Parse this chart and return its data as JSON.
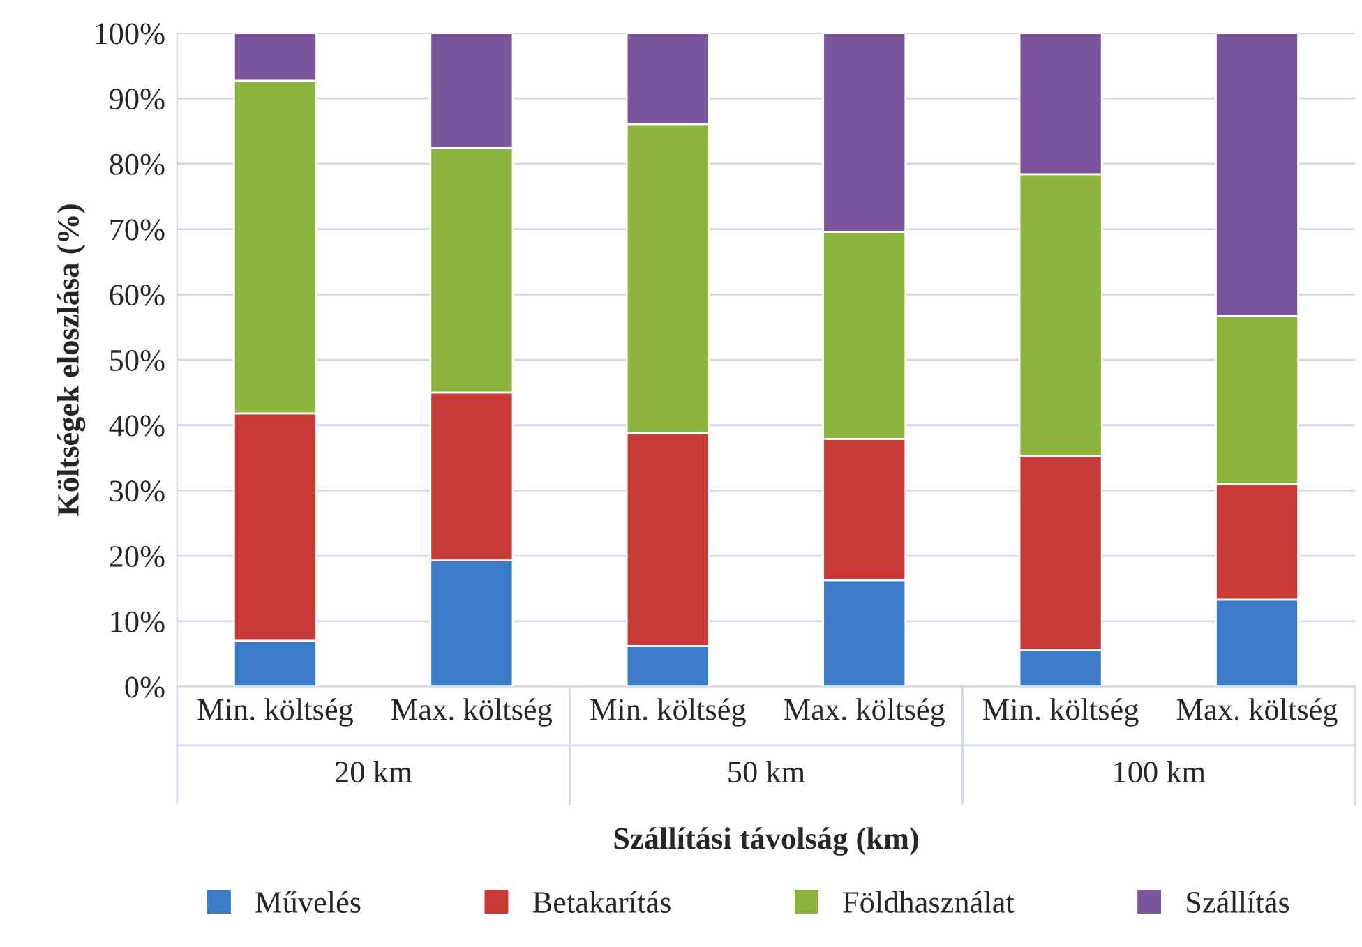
{
  "chart_data": {
    "type": "bar",
    "stacked": true,
    "xlabel": "Szállítási távolság (km)",
    "ylabel": "Költségek eloszlása (%)",
    "categories": [
      "Min. költség",
      "Max. költség",
      "Min. költség",
      "Max. költség",
      "Min. költség",
      "Max. költség"
    ],
    "annotations": [
      "20 km",
      "50 km",
      "100 km"
    ],
    "series": [
      {
        "name": "Művelés",
        "color": "#3b7bc8",
        "values": [
          7.0,
          19.3,
          6.2,
          16.3,
          5.6,
          13.3
        ]
      },
      {
        "name": "Betakarítás",
        "color": "#c83a36",
        "values": [
          34.8,
          25.7,
          32.6,
          21.6,
          29.7,
          17.7
        ]
      },
      {
        "name": "Földhasználat",
        "color": "#8db43e",
        "values": [
          50.9,
          37.4,
          47.3,
          31.7,
          43.1,
          25.7
        ]
      },
      {
        "name": "Szállítás",
        "color": "#7a559c",
        "values": [
          7.3,
          17.6,
          13.9,
          30.4,
          21.6,
          43.3
        ]
      }
    ],
    "ylim": [
      0,
      100
    ],
    "yticks": [
      {
        "value": 0,
        "label": "0%"
      },
      {
        "value": 10,
        "label": "10%"
      },
      {
        "value": 20,
        "label": "20%"
      },
      {
        "value": 30,
        "label": "30%"
      },
      {
        "value": 40,
        "label": "40%"
      },
      {
        "value": 50,
        "label": "50%"
      },
      {
        "value": 60,
        "label": "60%"
      },
      {
        "value": 70,
        "label": "70%"
      },
      {
        "value": 80,
        "label": "80%"
      },
      {
        "value": 90,
        "label": "90%"
      },
      {
        "value": 100,
        "label": "100%"
      }
    ],
    "grid": "y",
    "legend": "bottom"
  }
}
